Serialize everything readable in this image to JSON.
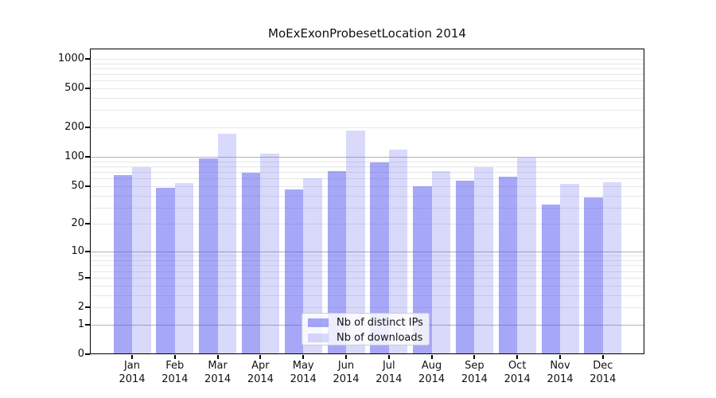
{
  "chart_data": {
    "type": "bar",
    "title": "MoExExonProbesetLocation 2014",
    "categories": [
      "Jan",
      "Feb",
      "Mar",
      "Apr",
      "May",
      "Jun",
      "Jul",
      "Aug",
      "Sep",
      "Oct",
      "Nov",
      "Dec"
    ],
    "x_tick_second_line": "2014",
    "series": [
      {
        "name": "Nb of distinct IPs",
        "color": "rgba(80,80,240,0.5)",
        "values": [
          65,
          48,
          96,
          69,
          46,
          72,
          88,
          50,
          57,
          63,
          32,
          38
        ]
      },
      {
        "name": "Nb of downloads",
        "color": "rgba(80,80,240,0.22)",
        "values": [
          78,
          54,
          172,
          108,
          60,
          186,
          119,
          72,
          78,
          98,
          53,
          55
        ]
      }
    ],
    "y_axis": {
      "scale": "log10(1+value), 0 at baseline",
      "tick_labels": [
        0,
        1,
        2,
        5,
        10,
        20,
        50,
        100,
        200,
        500,
        1000
      ],
      "major_gridlines": [
        1,
        10,
        100
      ],
      "minor_gridlines": [
        2,
        3,
        4,
        5,
        6,
        7,
        8,
        9,
        20,
        30,
        40,
        50,
        60,
        70,
        80,
        90,
        200,
        300,
        400,
        500,
        600,
        700,
        800,
        900,
        1000
      ],
      "grid": true
    },
    "legend": {
      "position": "lower-center"
    },
    "colors": {
      "major_grid": "#b2b2b2",
      "minor_grid": "#e7e7e7",
      "axis": "#000000"
    }
  }
}
